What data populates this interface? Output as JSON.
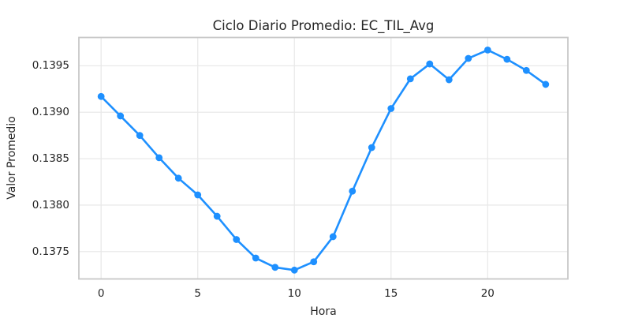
{
  "chart_data": {
    "type": "line",
    "title": "Ciclo Diario Promedio: EC_TIL_Avg",
    "xlabel": "Hora",
    "ylabel": "Valor Promedio",
    "x": [
      0,
      1,
      2,
      3,
      4,
      5,
      6,
      7,
      8,
      9,
      10,
      11,
      12,
      13,
      14,
      15,
      16,
      17,
      18,
      19,
      20,
      21,
      22,
      23
    ],
    "values": [
      0.13917,
      0.13896,
      0.13875,
      0.13851,
      0.13829,
      0.13811,
      0.13788,
      0.13763,
      0.13743,
      0.13733,
      0.1373,
      0.13739,
      0.13766,
      0.13815,
      0.13862,
      0.13904,
      0.13936,
      0.13952,
      0.13935,
      0.13958,
      0.13967,
      0.13957,
      0.13945,
      0.1393
    ],
    "x_ticks": [
      {
        "value": 0,
        "label": "0"
      },
      {
        "value": 5,
        "label": "5"
      },
      {
        "value": 10,
        "label": "10"
      },
      {
        "value": 15,
        "label": "15"
      },
      {
        "value": 20,
        "label": "20"
      }
    ],
    "y_ticks": [
      {
        "value": 0.1375,
        "label": "0.1375"
      },
      {
        "value": 0.138,
        "label": "0.1380"
      },
      {
        "value": 0.1385,
        "label": "0.1385"
      },
      {
        "value": 0.139,
        "label": "0.1390"
      },
      {
        "value": 0.1395,
        "label": "0.1395"
      }
    ],
    "xlim": [
      -1.15,
      24.15
    ],
    "ylim": [
      0.137205,
      0.139805
    ],
    "grid": true,
    "legend": false,
    "line_color": "#1E90FF",
    "marker": "circle",
    "grid_color": "#e9e9e9",
    "spine_color": "#c8c8c8",
    "text_color": "#262626",
    "background_color": "#ffffff"
  }
}
